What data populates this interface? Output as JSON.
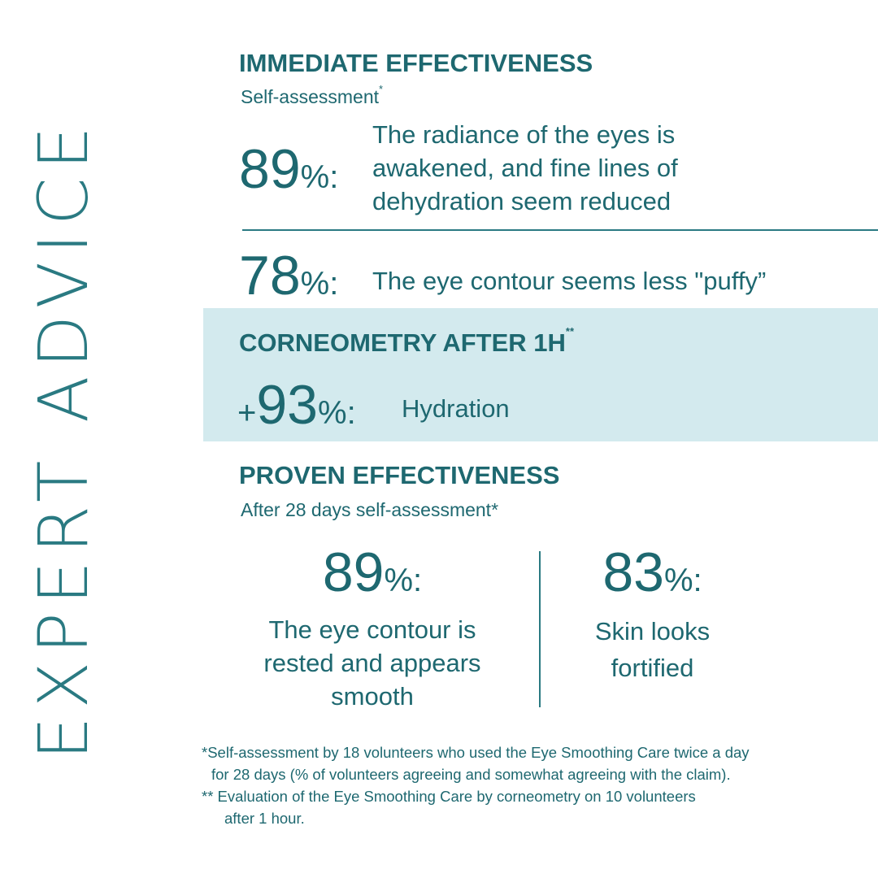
{
  "side_title": "EXPERT ADVICE",
  "immediate": {
    "heading": "IMMEDIATE EFFECTIVENESS",
    "subheading": "Self-assessment",
    "sub_mark": "*",
    "stat1": {
      "value": "89",
      "unit": "%:",
      "lines": [
        "The radiance of the eyes is",
        "awakened, and fine lines of",
        "dehydration seem reduced"
      ]
    },
    "stat2": {
      "value": "78",
      "unit": "%:",
      "text": "The eye contour seems less \"puffy”"
    }
  },
  "corneometry": {
    "heading": "CORNEOMETRY AFTER 1H",
    "mark": "**",
    "prefix": "+",
    "value": "93",
    "unit": "%:",
    "text": "Hydration"
  },
  "proven": {
    "heading": "PROVEN EFFECTIVENESS",
    "subheading": "After 28 days self-assessment*",
    "stats": [
      {
        "value": "89",
        "unit": "%:",
        "lines": [
          "The eye contour is",
          "rested and appears",
          "smooth"
        ]
      },
      {
        "value": "83",
        "unit": "%:",
        "lines": [
          "Skin looks",
          "fortified"
        ]
      }
    ]
  },
  "footnotes": [
    "*Self-assessment by 18 volunteers who used the Eye Smoothing Care twice a day",
    "for 28 days (% of volunteers agreeing and somewhat agreeing with the claim).",
    "** Evaluation of the Eye Smoothing Care by corneometry on 10 volunteers",
    "after 1 hour."
  ]
}
